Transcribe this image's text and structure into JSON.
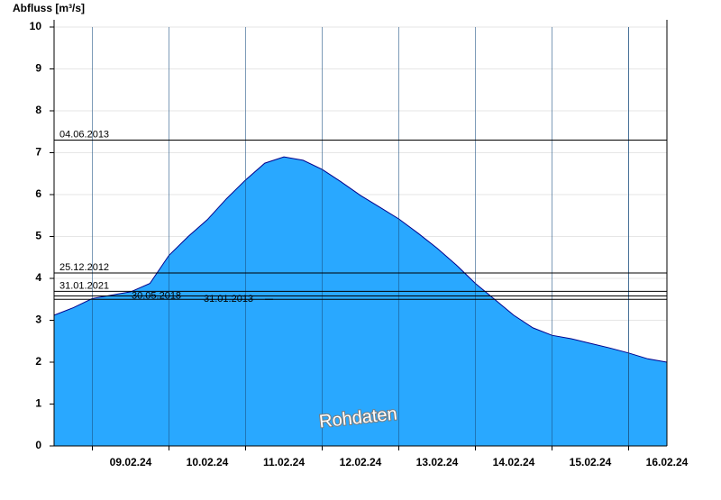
{
  "chart_data": {
    "type": "area",
    "ylabel": "Abfluss [m³/s]",
    "watermark": "Rohdaten",
    "x_start": "08.02.24 12:00",
    "x_end": "16.02.24 12:00",
    "xticks": [
      "09.02.24",
      "10.02.24",
      "11.02.24",
      "12.02.24",
      "13.02.24",
      "14.02.24",
      "15.02.24",
      "16.02.24"
    ],
    "ylim": [
      0,
      10
    ],
    "yticks": [
      0,
      1,
      2,
      3,
      4,
      5,
      6,
      7,
      8,
      9,
      10
    ],
    "grid": true,
    "fill_color": "#29a8ff",
    "line_color": "#00008b",
    "reference_lines": [
      {
        "label": "04.06.2013",
        "value": 7.3
      },
      {
        "label": "25.12.2012",
        "value": 4.13
      },
      {
        "label": "31.01.2021",
        "value": 3.69
      },
      {
        "label": "30.05.2018",
        "value": 3.58
      },
      {
        "label": "31.01.2013",
        "value": 3.5
      }
    ],
    "series": [
      {
        "x": [
          "08.02.24 12:00",
          "08.02.24 18:00",
          "09.02.24 00:00",
          "09.02.24 06:00",
          "09.02.24 12:00",
          "09.02.24 18:00",
          "10.02.24 00:00",
          "10.02.24 06:00",
          "10.02.24 12:00",
          "10.02.24 18:00",
          "11.02.24 00:00",
          "11.02.24 06:00",
          "11.02.24 12:00",
          "11.02.24 18:00",
          "12.02.24 00:00",
          "12.02.24 06:00",
          "12.02.24 12:00",
          "12.02.24 18:00",
          "13.02.24 00:00",
          "13.02.24 06:00",
          "13.02.24 12:00",
          "13.02.24 18:00",
          "14.02.24 00:00",
          "14.02.24 06:00",
          "14.02.24 12:00",
          "14.02.24 18:00",
          "15.02.24 00:00",
          "15.02.24 06:00",
          "15.02.24 12:00",
          "15.02.24 18:00",
          "16.02.24 00:00",
          "16.02.24 06:00",
          "16.02.24 12:00"
        ],
        "values": [
          3.12,
          3.3,
          3.52,
          3.6,
          3.68,
          3.88,
          4.55,
          5.0,
          5.4,
          5.9,
          6.35,
          6.75,
          6.9,
          6.82,
          6.6,
          6.3,
          5.98,
          5.7,
          5.42,
          5.08,
          4.72,
          4.32,
          3.88,
          3.5,
          3.12,
          2.82,
          2.64,
          2.56,
          2.45,
          2.34,
          2.22,
          2.08,
          2.0
        ]
      }
    ]
  }
}
